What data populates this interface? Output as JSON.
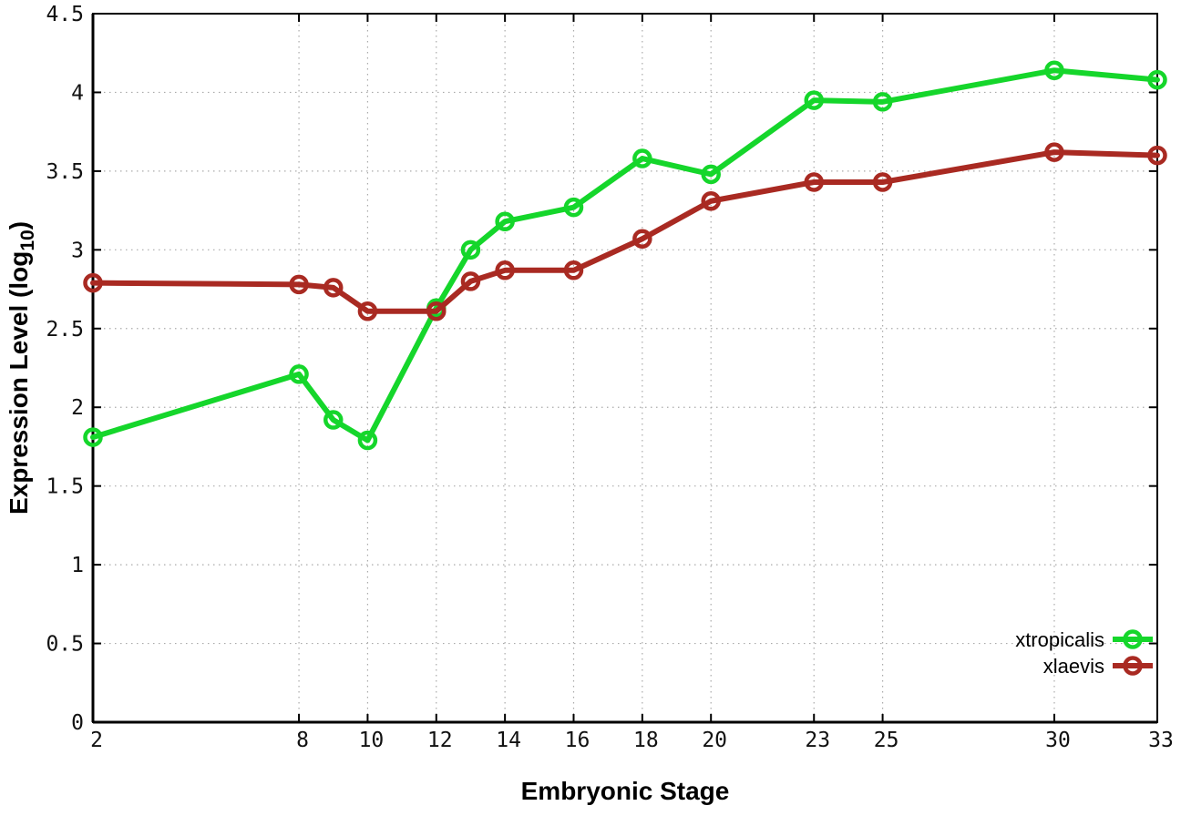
{
  "chart_data": {
    "type": "line",
    "title": "",
    "xlabel": "Embryonic Stage",
    "ylabel": "Expression Level (log10)",
    "ylabel_parts": {
      "pre": "Expression Level (log",
      "sub": "10",
      "post": ")"
    },
    "xlim": [
      2,
      33
    ],
    "ylim": [
      0,
      4.5
    ],
    "grid": true,
    "grid_style": "dotted",
    "legend_position": "inside-bottom-right",
    "x_tick_values": [
      2,
      8,
      10,
      12,
      14,
      16,
      18,
      20,
      23,
      25,
      30,
      33
    ],
    "x_tick_labels": [
      "2",
      "8",
      "10",
      "12",
      "14",
      "16",
      "18",
      "20",
      "23",
      "25",
      "30",
      "33"
    ],
    "y_tick_values": [
      0,
      0.5,
      1,
      1.5,
      2,
      2.5,
      3,
      3.5,
      4,
      4.5
    ],
    "y_tick_labels": [
      "0",
      "0.5",
      "1",
      "1.5",
      "2",
      "2.5",
      "3",
      "3.5",
      "4",
      "4.5"
    ],
    "x": [
      2,
      8,
      9,
      10,
      12,
      13,
      14,
      16,
      18,
      20,
      23,
      25,
      30,
      33
    ],
    "series": [
      {
        "name": "xtropicalis",
        "color": "#15d62b",
        "marker": "open-circle",
        "values": [
          1.81,
          2.21,
          1.92,
          1.79,
          2.63,
          3.0,
          3.18,
          3.27,
          3.58,
          3.48,
          3.95,
          3.94,
          4.14,
          4.08
        ]
      },
      {
        "name": "xlaevis",
        "color": "#a92a22",
        "marker": "open-circle",
        "values": [
          2.79,
          2.78,
          2.76,
          2.61,
          2.61,
          2.8,
          2.87,
          2.87,
          3.07,
          3.31,
          3.43,
          3.43,
          3.62,
          3.6
        ]
      }
    ]
  },
  "colors": {
    "background": "#ffffff",
    "border": "#000000",
    "gridline": "#aaaaaa",
    "tick_label": "#111111"
  }
}
